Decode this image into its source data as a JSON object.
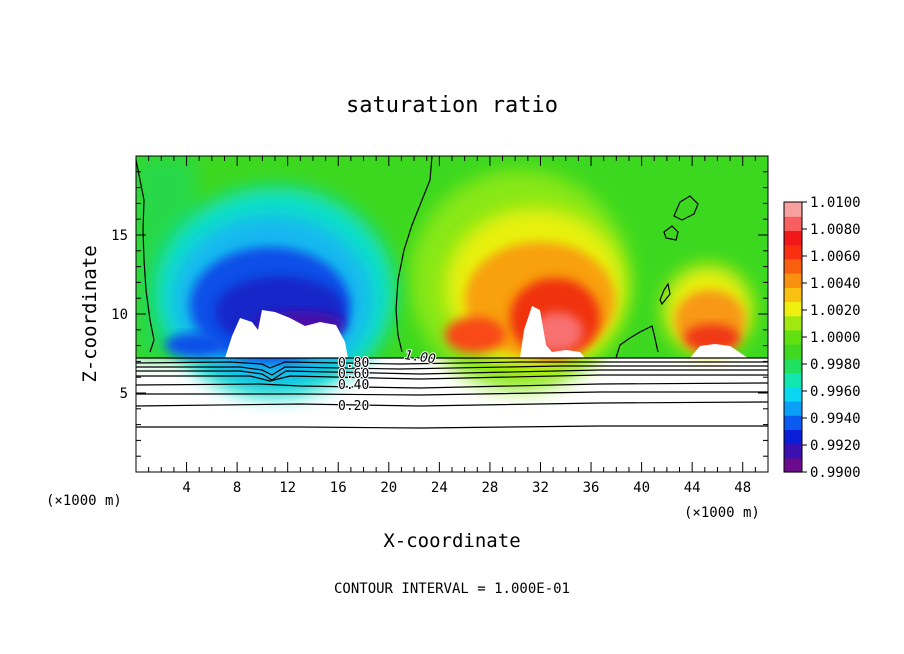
{
  "chart_data": {
    "type": "heatmap",
    "title": "saturation ratio",
    "xlabel": "X-coordinate",
    "ylabel": "Z-coordinate",
    "x_unit_left": "(×1000 m)",
    "x_unit_right": "(×1000 m)",
    "xlim": [
      0,
      50
    ],
    "ylim": [
      0,
      20
    ],
    "x_ticks": [
      4,
      8,
      12,
      16,
      20,
      24,
      28,
      32,
      36,
      40,
      44,
      48
    ],
    "y_ticks": [
      5,
      10,
      15
    ],
    "footer": "CONTOUR INTERVAL = 1.000E-01",
    "colorbar": {
      "labels": [
        "1.0100",
        "1.0080",
        "1.0060",
        "1.0040",
        "1.0020",
        "1.0000",
        "0.9980",
        "0.9960",
        "0.9940",
        "0.9920",
        "0.9900"
      ],
      "min": 0.99,
      "max": 1.01,
      "colors": [
        "#6a0a8c",
        "#3a10b0",
        "#0a1ed8",
        "#0a5af0",
        "#0aa0f8",
        "#0ad8f0",
        "#10e8b0",
        "#20e060",
        "#40d820",
        "#60e010",
        "#a0e810",
        "#f0f010",
        "#f8c010",
        "#f89010",
        "#f86010",
        "#f83010",
        "#f01818",
        "#f86060",
        "#f8a0a0"
      ]
    },
    "contour_labels": [
      "1.00",
      "0.80",
      "0.60",
      "0.40",
      "0.20"
    ],
    "contours": [
      {
        "level": 1.0,
        "label": "1.00"
      },
      {
        "level": 0.8,
        "label": "0.80"
      },
      {
        "level": 0.6,
        "label": "0.60"
      },
      {
        "level": 0.4,
        "label": "0.40"
      },
      {
        "level": 0.2,
        "label": "0.20"
      }
    ],
    "field_features": [
      {
        "kind": "subsaturated",
        "x_range": [
          3,
          20
        ],
        "z_range": [
          7,
          16
        ],
        "min_value": 0.99
      },
      {
        "kind": "supersaturated",
        "x_range": [
          24,
          37
        ],
        "z_range": [
          7,
          15
        ],
        "max_value": 1.008
      },
      {
        "kind": "supersaturated",
        "x_range": [
          41,
          49
        ],
        "z_range": [
          7,
          13
        ],
        "max_value": 1.005
      }
    ],
    "surface_line_z": 7.2
  }
}
